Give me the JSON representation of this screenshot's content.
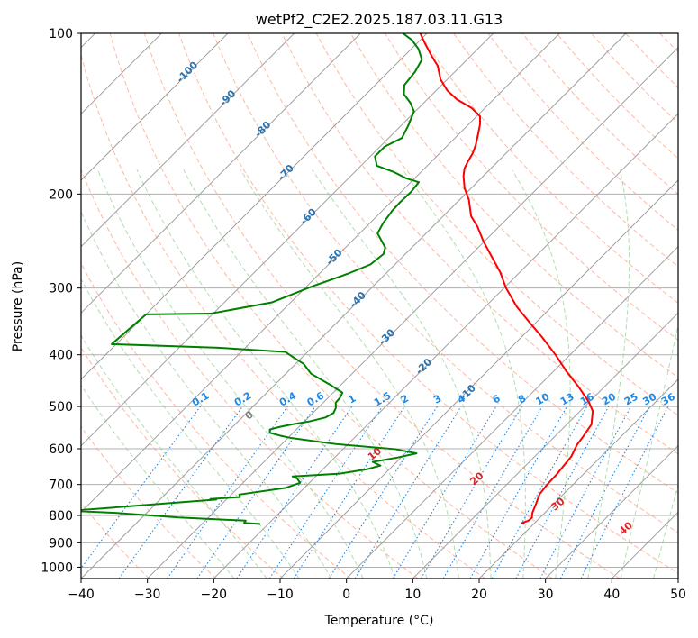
{
  "chart_data": {
    "type": "line",
    "subtype": "skew-t log-p diagram",
    "title": "wetPf2_C2E2.2025.187.03.11.G13",
    "xlabel": "Temperature (°C)",
    "ylabel": "Pressure (hPa)",
    "xlim": [
      -40,
      50
    ],
    "ylim": [
      1050,
      100
    ],
    "y_scale": "log",
    "grid": true,
    "x_ticks": [
      -40,
      -30,
      -20,
      -10,
      0,
      10,
      20,
      30,
      40,
      50
    ],
    "y_ticks": [
      100,
      200,
      300,
      400,
      500,
      600,
      700,
      800,
      900,
      1000
    ],
    "series": [
      {
        "kind": "temperature",
        "color": "#ff0000",
        "points": [
          [
            18.6,
            830
          ],
          [
            18.1,
            826
          ],
          [
            18.7,
            818
          ],
          [
            18.8,
            808
          ],
          [
            18.1,
            790
          ],
          [
            17.3,
            760
          ],
          [
            16.4,
            730
          ],
          [
            16.1,
            700
          ],
          [
            16.0,
            670
          ],
          [
            15.7,
            640
          ],
          [
            15.5,
            620
          ],
          [
            14.6,
            590
          ],
          [
            14.3,
            570
          ],
          [
            13.7,
            540
          ],
          [
            11.9,
            510
          ],
          [
            9.9,
            490
          ],
          [
            6.2,
            460
          ],
          [
            2.0,
            430
          ],
          [
            -2.2,
            400
          ],
          [
            -7.0,
            370
          ],
          [
            -10.6,
            350
          ],
          [
            -15.3,
            325
          ],
          [
            -19.7,
            300
          ],
          [
            -23.0,
            280
          ],
          [
            -27.0,
            260
          ],
          [
            -30.2,
            245
          ],
          [
            -33.3,
            230
          ],
          [
            -35.8,
            220
          ],
          [
            -38.6,
            205
          ],
          [
            -41.0,
            195
          ],
          [
            -43.0,
            185
          ],
          [
            -44.0,
            179
          ],
          [
            -44.5,
            174
          ],
          [
            -45.0,
            168
          ],
          [
            -45.8,
            162
          ],
          [
            -47.0,
            155
          ],
          [
            -48.3,
            148
          ],
          [
            -49.5,
            143
          ],
          [
            -52.0,
            138
          ],
          [
            -55.5,
            133
          ],
          [
            -58.3,
            128
          ],
          [
            -61.0,
            122
          ],
          [
            -63.5,
            115
          ],
          [
            -66.0,
            110
          ],
          [
            -68.5,
            105
          ],
          [
            -71.0,
            100
          ]
        ]
      },
      {
        "kind": "dewpoint",
        "color": "#008000",
        "points": [
          [
            -21.2,
            830
          ],
          [
            -23.8,
            826
          ],
          [
            -23.9,
            818
          ],
          [
            -30.8,
            811
          ],
          [
            -34.5,
            807
          ],
          [
            -44.7,
            791
          ],
          [
            -51.6,
            784
          ],
          [
            -39.3,
            761
          ],
          [
            -31.5,
            747
          ],
          [
            -32.5,
            745
          ],
          [
            -28.3,
            739
          ],
          [
            -28.8,
            731
          ],
          [
            -22.8,
            710
          ],
          [
            -21.4,
            695
          ],
          [
            -22.5,
            682
          ],
          [
            -23.5,
            676
          ],
          [
            -16.8,
            668
          ],
          [
            -13.3,
            655
          ],
          [
            -11.9,
            645
          ],
          [
            -13.6,
            635
          ],
          [
            -10.5,
            623
          ],
          [
            -8.3,
            612
          ],
          [
            -12.1,
            601
          ],
          [
            -21.8,
            588
          ],
          [
            -29.4,
            573
          ],
          [
            -31.5,
            567
          ],
          [
            -33.5,
            560
          ],
          [
            -34.0,
            552
          ],
          [
            -32.9,
            546
          ],
          [
            -31.4,
            540
          ],
          [
            -29.2,
            533
          ],
          [
            -27.4,
            524
          ],
          [
            -26.9,
            514
          ],
          [
            -27.3,
            503
          ],
          [
            -28.1,
            492
          ],
          [
            -28.2,
            482
          ],
          [
            -28.6,
            471
          ],
          [
            -31.7,
            455
          ],
          [
            -36.2,
            434
          ],
          [
            -38.8,
            416
          ],
          [
            -43.4,
            395
          ],
          [
            -54.1,
            388
          ],
          [
            -70.7,
            382
          ],
          [
            -70.0,
            336
          ],
          [
            -60.4,
            335
          ],
          [
            -52.8,
            319
          ],
          [
            -49.2,
            298
          ],
          [
            -45.7,
            282
          ],
          [
            -43.7,
            271
          ],
          [
            -43.3,
            259
          ],
          [
            -44.0,
            252
          ],
          [
            -45.5,
            245
          ],
          [
            -47.3,
            237
          ],
          [
            -48.0,
            227
          ],
          [
            -48.5,
            215
          ],
          [
            -48.6,
            207
          ],
          [
            -48.5,
            198
          ],
          [
            -48.8,
            190
          ],
          [
            -51.2,
            187
          ],
          [
            -54.0,
            182
          ],
          [
            -57.6,
            177
          ],
          [
            -59.3,
            170
          ],
          [
            -59.3,
            163
          ],
          [
            -58.0,
            157
          ],
          [
            -58.9,
            149
          ],
          [
            -60.2,
            140
          ],
          [
            -62.0,
            135
          ],
          [
            -64.3,
            130
          ],
          [
            -65.6,
            125
          ],
          [
            -66.0,
            118
          ],
          [
            -66.8,
            112
          ],
          [
            -68.9,
            107
          ],
          [
            -71.2,
            103
          ],
          [
            -73.6,
            100
          ]
        ]
      }
    ],
    "isotherm_labels": [
      "-100",
      "-90",
      "-80",
      "-70",
      "-60",
      "-50",
      "-40",
      "-30",
      "-20",
      "-10"
    ],
    "isotherm_label_color": "#2a73b0",
    "isotherm_label_values": [
      -100,
      -90,
      -80,
      -70,
      -60,
      -50,
      -40,
      -30,
      -20,
      -10
    ],
    "mixing_ratio_labels": [
      "0.1",
      "0.2",
      "0.4",
      "0.6",
      "1",
      "1.5",
      "2",
      "3",
      "4",
      "6",
      "8",
      "10",
      "13",
      "16",
      "20",
      "25",
      "30",
      "36"
    ],
    "mixing_ratio_values": [
      0.1,
      0.2,
      0.4,
      0.6,
      1,
      1.5,
      2,
      3,
      4,
      6,
      8,
      10,
      13,
      16,
      20,
      25,
      30,
      36
    ],
    "mixing_ratio_color": "#1e88e5",
    "moist_adiabat_labels": [
      "0",
      "10",
      "20",
      "30",
      "40"
    ],
    "moist_adiabat_values": [
      0,
      10,
      20,
      30,
      40
    ],
    "moist_adiabat_label_colors": [
      "#808080",
      "#d62728",
      "#d62728",
      "#d62728",
      "#d62728"
    ],
    "colors": {
      "temperature": "#ff0000",
      "dewpoint": "#008000",
      "isotherm": "#a0a0a0",
      "dry_adiabat": "#ff9f80",
      "moist_adiabat": "#8fce8f",
      "mixing_ratio": "#1e88e5",
      "hgrid": "#b0b0b0"
    }
  }
}
